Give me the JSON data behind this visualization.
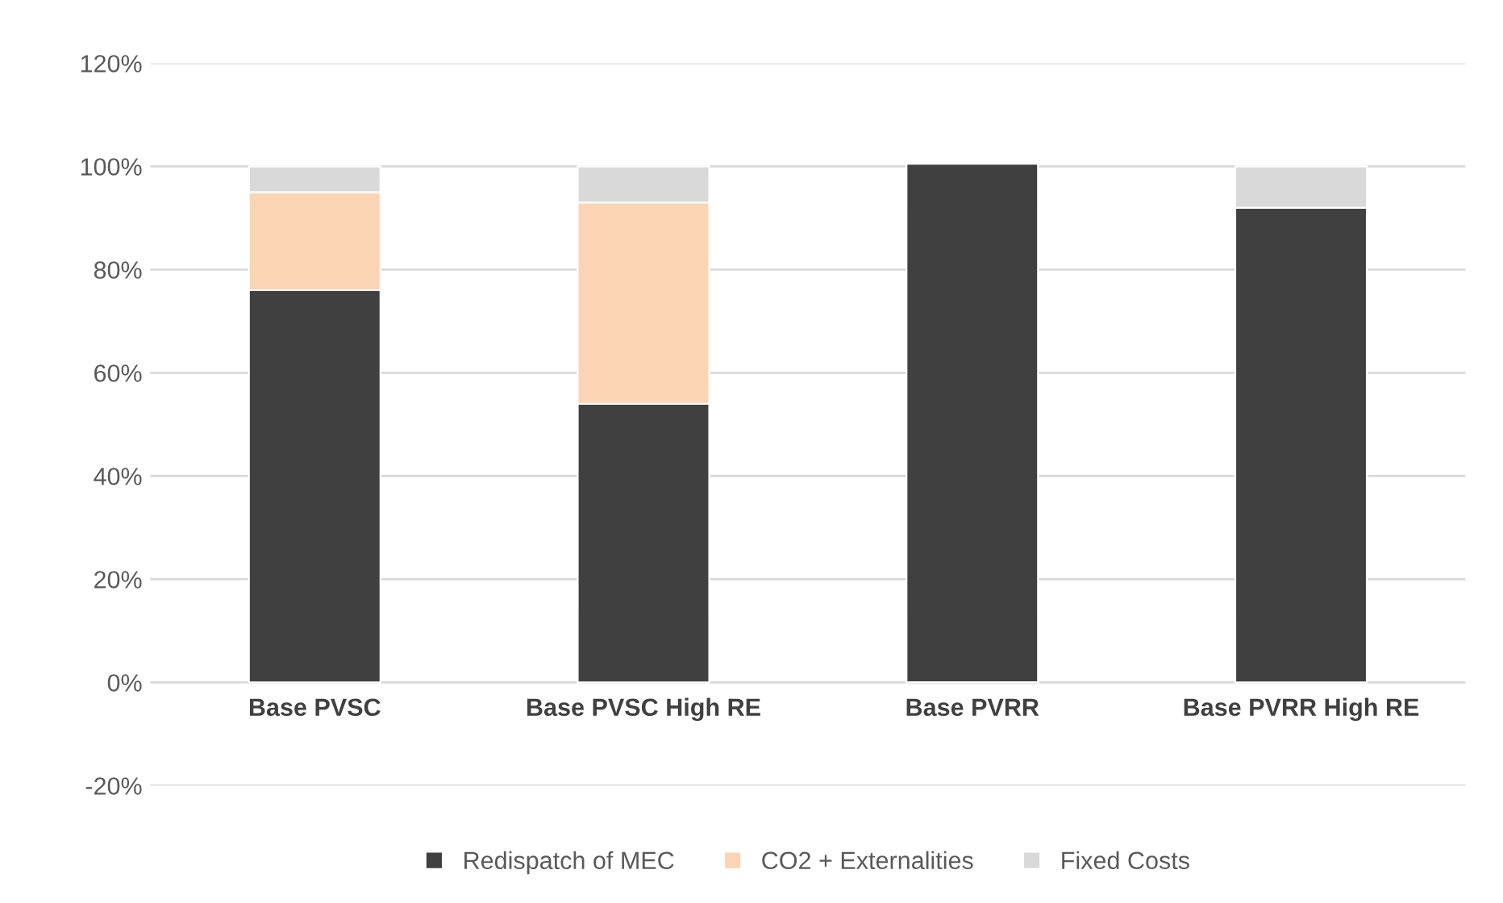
{
  "chart_data": {
    "type": "bar",
    "stacked": true,
    "categories": [
      "Base PVSC",
      "Base PVSC High RE",
      "Base PVRR",
      "Base PVRR High RE"
    ],
    "series": [
      {
        "name": "Redispatch of MEC",
        "color": "#404040",
        "values": [
          76,
          54,
          100.5,
          92
        ]
      },
      {
        "name": "CO2 + Externalities",
        "color": "#fbd4b4",
        "values": [
          19,
          39,
          null,
          null
        ]
      },
      {
        "name": "Fixed Costs",
        "color": "#d9d9d9",
        "values": [
          5,
          7,
          -0.5,
          8
        ]
      }
    ],
    "ylim": [
      -20,
      120
    ],
    "yticks": [
      {
        "value": -20,
        "label": "-20%"
      },
      {
        "value": 0,
        "label": "0%"
      },
      {
        "value": 20,
        "label": "20%"
      },
      {
        "value": 40,
        "label": "40%"
      },
      {
        "value": 60,
        "label": "60%"
      },
      {
        "value": 80,
        "label": "80%"
      },
      {
        "value": 100,
        "label": "100%"
      },
      {
        "value": 120,
        "label": "120%"
      }
    ],
    "grid": "y",
    "legend": "bottom"
  }
}
